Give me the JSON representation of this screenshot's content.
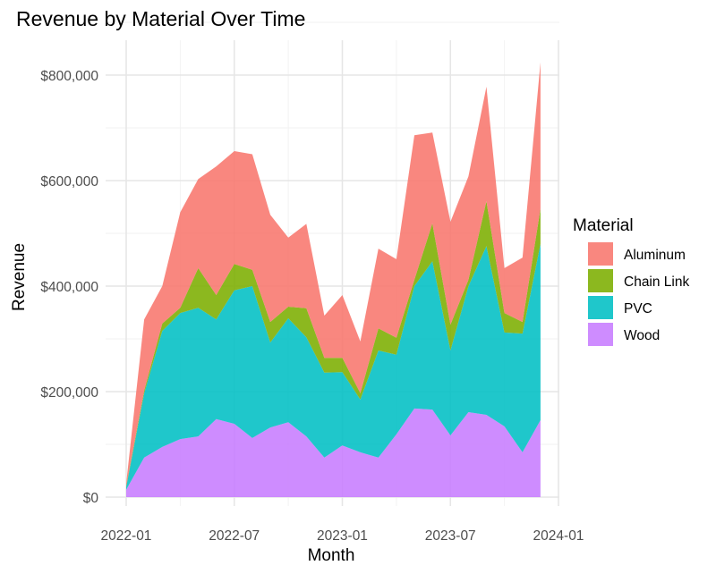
{
  "chart_data": {
    "type": "area",
    "stacked": true,
    "title": "Revenue by Material Over Time",
    "xlabel": "Month",
    "ylabel": "Revenue",
    "x": [
      "2022-01",
      "2022-02",
      "2022-03",
      "2022-04",
      "2022-05",
      "2022-06",
      "2022-07",
      "2022-08",
      "2022-09",
      "2022-10",
      "2022-11",
      "2022-12",
      "2023-01",
      "2023-02",
      "2023-03",
      "2023-04",
      "2023-05",
      "2023-06",
      "2023-07",
      "2023-08",
      "2023-09",
      "2023-10",
      "2023-11",
      "2023-12"
    ],
    "x_ticks": [
      "2022-01",
      "2022-07",
      "2023-01",
      "2023-07",
      "2024-01"
    ],
    "y_ticks": [
      "$0",
      "$200,000",
      "$400,000",
      "$600,000",
      "$800,000"
    ],
    "y_tick_values": [
      0,
      200000,
      400000,
      600000,
      800000
    ],
    "ylim": [
      0,
      840000
    ],
    "grid": true,
    "legend": {
      "title": "Material",
      "placement": "right"
    },
    "series": [
      {
        "name": "Aluminum",
        "color": "#F8766D",
        "values": [
          5000,
          135000,
          71000,
          181000,
          169000,
          244000,
          214000,
          219000,
          203000,
          131000,
          160000,
          80000,
          119000,
          98000,
          151000,
          149000,
          274000,
          172000,
          195000,
          196000,
          217000,
          85000,
          122000,
          277000
        ]
      },
      {
        "name": "Chain Link",
        "color": "#7CAE00",
        "values": [
          2000,
          5000,
          14000,
          10000,
          75000,
          46000,
          50000,
          31000,
          39000,
          22000,
          55000,
          28000,
          27000,
          12000,
          42000,
          32000,
          12000,
          72000,
          49000,
          12000,
          85000,
          37000,
          22000,
          67000
        ]
      },
      {
        "name": "PVC",
        "color": "#00BFC4",
        "values": [
          5000,
          122000,
          220000,
          239000,
          244000,
          189000,
          253000,
          288000,
          161000,
          197000,
          188000,
          161000,
          139000,
          100000,
          203000,
          151000,
          232000,
          281000,
          161000,
          239000,
          320000,
          178000,
          225000,
          334000
        ]
      },
      {
        "name": "Wood",
        "color": "#C77CFF",
        "values": [
          14000,
          75000,
          95000,
          110000,
          115000,
          148000,
          139000,
          112000,
          132000,
          142000,
          115000,
          75000,
          98000,
          85000,
          75000,
          119000,
          168000,
          166000,
          117000,
          161000,
          156000,
          134000,
          85000,
          146000
        ]
      }
    ]
  }
}
